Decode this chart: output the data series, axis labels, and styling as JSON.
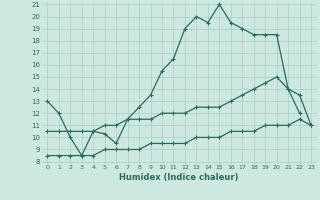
{
  "xlabel": "Humidex (Indice chaleur)",
  "x_values": [
    0,
    1,
    2,
    3,
    4,
    5,
    6,
    7,
    8,
    9,
    10,
    11,
    12,
    13,
    14,
    15,
    16,
    17,
    18,
    19,
    20,
    21,
    22,
    23
  ],
  "curve1": [
    13.0,
    12.0,
    10.0,
    8.5,
    10.5,
    10.3,
    9.5,
    11.5,
    12.5,
    13.5,
    15.5,
    16.5,
    19.0,
    20.0,
    19.5,
    21.0,
    19.5,
    19.0,
    18.5,
    18.5,
    18.5,
    14.0,
    12.0,
    null
  ],
  "curve2": [
    10.5,
    10.5,
    10.5,
    10.5,
    10.5,
    11.0,
    11.0,
    11.5,
    11.5,
    11.5,
    12.0,
    12.0,
    12.0,
    12.5,
    12.5,
    12.5,
    13.0,
    13.5,
    14.0,
    14.5,
    15.0,
    14.0,
    13.5,
    11.0
  ],
  "curve3": [
    8.5,
    8.5,
    8.5,
    8.5,
    8.5,
    9.0,
    9.0,
    9.0,
    9.0,
    9.5,
    9.5,
    9.5,
    9.5,
    10.0,
    10.0,
    10.0,
    10.5,
    10.5,
    10.5,
    11.0,
    11.0,
    11.0,
    11.5,
    11.0
  ],
  "line_color": "#2a6b5c",
  "bg_color": "#cce8e0",
  "grid_color": "#a8cec8",
  "ylim": [
    8,
    21
  ],
  "xlim": [
    -0.5,
    23.5
  ],
  "yticks": [
    8,
    9,
    10,
    11,
    12,
    13,
    14,
    15,
    16,
    17,
    18,
    19,
    20,
    21
  ],
  "xticks": [
    0,
    1,
    2,
    3,
    4,
    5,
    6,
    7,
    8,
    9,
    10,
    11,
    12,
    13,
    14,
    15,
    16,
    17,
    18,
    19,
    20,
    21,
    22,
    23
  ]
}
